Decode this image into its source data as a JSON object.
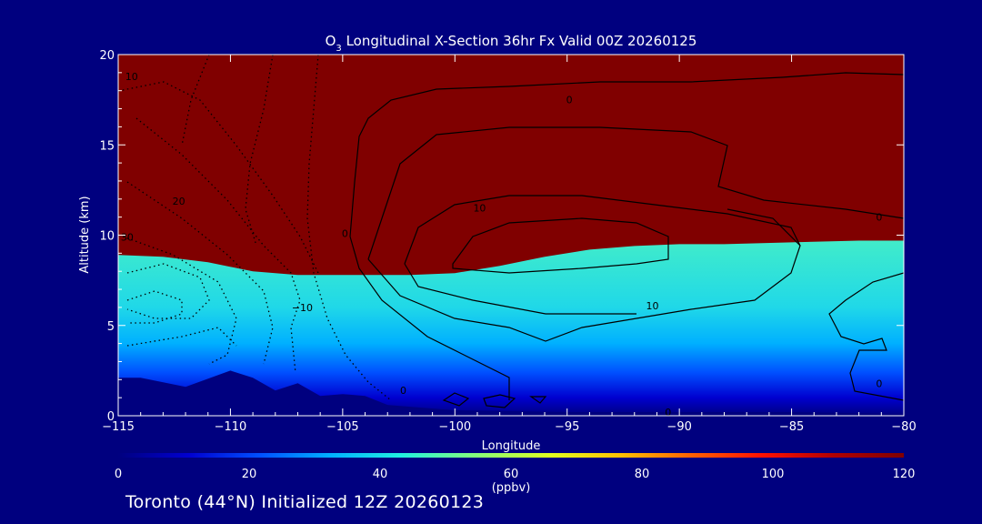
{
  "chart_data": {
    "type": "heatmap",
    "title_prefix": "O",
    "title_sub": "3",
    "title_rest": " Longitudinal X-Section 36hr  Fx Valid 00Z 20260125",
    "xlabel": "Longitude",
    "ylabel": "Altitude (km)",
    "xlim": [
      -115,
      -80
    ],
    "ylim": [
      0,
      20
    ],
    "x_ticks": [
      -115,
      -110,
      -105,
      -100,
      -95,
      -90,
      -85,
      -80
    ],
    "x_tick_labels": [
      "−115",
      "−110",
      "−105",
      "−100",
      "−95",
      "−90",
      "−85",
      "−80"
    ],
    "y_ticks": [
      0,
      5,
      10,
      15,
      20
    ],
    "y_tick_labels": [
      "0",
      "5",
      "10",
      "15",
      "20"
    ],
    "colorbar": {
      "min": 0,
      "max": 120,
      "ticks": [
        0,
        20,
        40,
        60,
        80,
        100,
        120
      ],
      "tick_labels": [
        "0",
        "20",
        "40",
        "60",
        "80",
        "100",
        "120"
      ],
      "units": "(ppbv)",
      "colors": [
        "#00007f",
        "#0000d0",
        "#0050ff",
        "#00b0ff",
        "#20f0e0",
        "#80ff80",
        "#e0ff20",
        "#ffc000",
        "#ff6000",
        "#ff1000",
        "#b00000",
        "#800000"
      ]
    },
    "tropopause_altitude_km": [
      [
        -115,
        8.9
      ],
      [
        -113,
        8.8
      ],
      [
        -111,
        8.5
      ],
      [
        -109,
        8.0
      ],
      [
        -107,
        7.8
      ],
      [
        -105,
        7.8
      ],
      [
        -102,
        7.8
      ],
      [
        -100,
        7.9
      ],
      [
        -98,
        8.3
      ],
      [
        -96,
        8.8
      ],
      [
        -94,
        9.2
      ],
      [
        -92,
        9.4
      ],
      [
        -90,
        9.5
      ],
      [
        -88,
        9.5
      ],
      [
        -85,
        9.6
      ],
      [
        -82,
        9.7
      ],
      [
        -80,
        9.7
      ]
    ],
    "terrain_km": [
      [
        -115,
        2.1
      ],
      [
        -114,
        2.1
      ],
      [
        -112,
        1.6
      ],
      [
        -110,
        2.5
      ],
      [
        -109,
        2.1
      ],
      [
        -108,
        1.4
      ],
      [
        -107,
        1.8
      ],
      [
        -106,
        1.1
      ],
      [
        -105,
        1.2
      ],
      [
        -104,
        1.1
      ],
      [
        -103,
        0.6
      ],
      [
        -102,
        0.5
      ],
      [
        -100,
        0.3
      ],
      [
        -95,
        0.2
      ],
      [
        -90,
        0.2
      ],
      [
        -85,
        0.2
      ],
      [
        -80,
        0.1
      ]
    ],
    "contour_labels": [
      {
        "text": "10",
        "lon": -114.4,
        "alt": 18.8
      },
      {
        "text": "20",
        "lon": -112.3,
        "alt": 11.9
      },
      {
        "text": "30",
        "lon": -114.6,
        "alt": 9.9
      },
      {
        "text": "−10",
        "lon": -106.8,
        "alt": 6.0
      },
      {
        "text": "0",
        "lon": -104.9,
        "alt": 10.1
      },
      {
        "text": "0",
        "lon": -94.9,
        "alt": 17.5
      },
      {
        "text": "10",
        "lon": -98.9,
        "alt": 11.5
      },
      {
        "text": "10",
        "lon": -91.2,
        "alt": 6.1
      },
      {
        "text": "0",
        "lon": -81.1,
        "alt": 11.0
      },
      {
        "text": "0",
        "lon": -81.1,
        "alt": 1.8
      },
      {
        "text": "0",
        "lon": -102.3,
        "alt": 1.4
      },
      {
        "text": "0",
        "lon": -90.5,
        "alt": 0.2
      }
    ]
  },
  "footer": "Toronto (44°N) Initialized 12Z 20260123"
}
